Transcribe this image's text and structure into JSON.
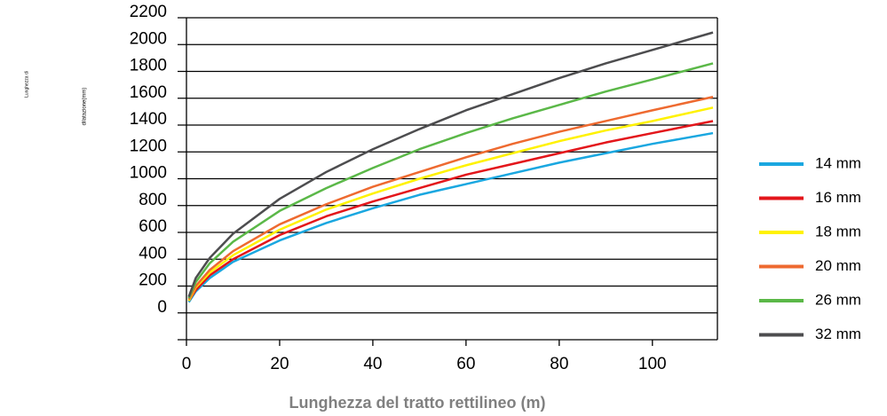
{
  "chart_data": {
    "type": "line",
    "y_label": "Lunghezza di",
    "y_label_2": "dilatazione(mm)",
    "x_label": "Lunghezza del tratto rettilineo (m)",
    "x": [
      0.5,
      2,
      5,
      10,
      20,
      30,
      40,
      50,
      60,
      70,
      80,
      90,
      100,
      113
    ],
    "series": [
      {
        "name": "14 mm",
        "color": "#1aa7e0",
        "values": [
          80,
          160,
          260,
          380,
          540,
          670,
          780,
          880,
          960,
          1040,
          1120,
          1190,
          1260,
          1340
        ]
      },
      {
        "name": "16 mm",
        "color": "#e3161b",
        "values": [
          90,
          170,
          280,
          400,
          580,
          720,
          830,
          930,
          1030,
          1110,
          1190,
          1270,
          1340,
          1430
        ]
      },
      {
        "name": "18 mm",
        "color": "#fff200",
        "values": [
          90,
          190,
          300,
          430,
          620,
          770,
          890,
          1000,
          1100,
          1190,
          1280,
          1360,
          1430,
          1530
        ]
      },
      {
        "name": "20 mm",
        "color": "#ee6a30",
        "values": [
          100,
          200,
          320,
          460,
          660,
          810,
          940,
          1050,
          1160,
          1260,
          1350,
          1430,
          1510,
          1610
        ]
      },
      {
        "name": "26 mm",
        "color": "#5bb848",
        "values": [
          110,
          230,
          370,
          530,
          760,
          930,
          1080,
          1220,
          1340,
          1450,
          1550,
          1650,
          1740,
          1860
        ]
      },
      {
        "name": "32 mm",
        "color": "#4d4d4f",
        "values": [
          120,
          260,
          410,
          590,
          850,
          1050,
          1220,
          1370,
          1510,
          1630,
          1750,
          1860,
          1960,
          2090
        ]
      }
    ],
    "xlim": [
      0,
      113
    ],
    "xticks": [
      0,
      20,
      40,
      60,
      80,
      100
    ],
    "ylim": [
      -200,
      2200
    ],
    "yticks": [
      0,
      200,
      400,
      600,
      800,
      1000,
      1200,
      1400,
      1600,
      1800,
      2000,
      2200
    ],
    "grid": true,
    "legend": "right"
  }
}
